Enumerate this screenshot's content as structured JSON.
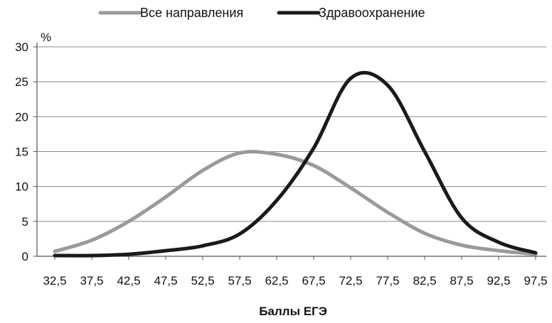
{
  "chart_data": {
    "type": "line",
    "title": "",
    "xlabel": "Баллы ЕГЭ",
    "ylabel": "%",
    "ylim": [
      0,
      30
    ],
    "yticks": [
      0,
      5,
      10,
      15,
      20,
      25,
      30
    ],
    "categories": [
      "32,5",
      "37,5",
      "42,5",
      "47,5",
      "52,5",
      "57,5",
      "62,5",
      "67,5",
      "72,5",
      "77,5",
      "82,5",
      "87,5",
      "92,5",
      "97,5"
    ],
    "grid": true,
    "legend_position": "top",
    "series": [
      {
        "name": "Все направления",
        "color": "#9a9a9a",
        "values": [
          0.7,
          2.3,
          5.0,
          8.5,
          12.3,
          14.8,
          14.6,
          13.0,
          9.8,
          6.3,
          3.3,
          1.6,
          0.8,
          0.3
        ]
      },
      {
        "name": "Здравоохранение",
        "color": "#1a1a1a",
        "values": [
          0.1,
          0.1,
          0.3,
          0.8,
          1.5,
          3.2,
          8.0,
          15.5,
          25.5,
          24.5,
          15.0,
          5.5,
          2.0,
          0.5
        ]
      }
    ]
  }
}
